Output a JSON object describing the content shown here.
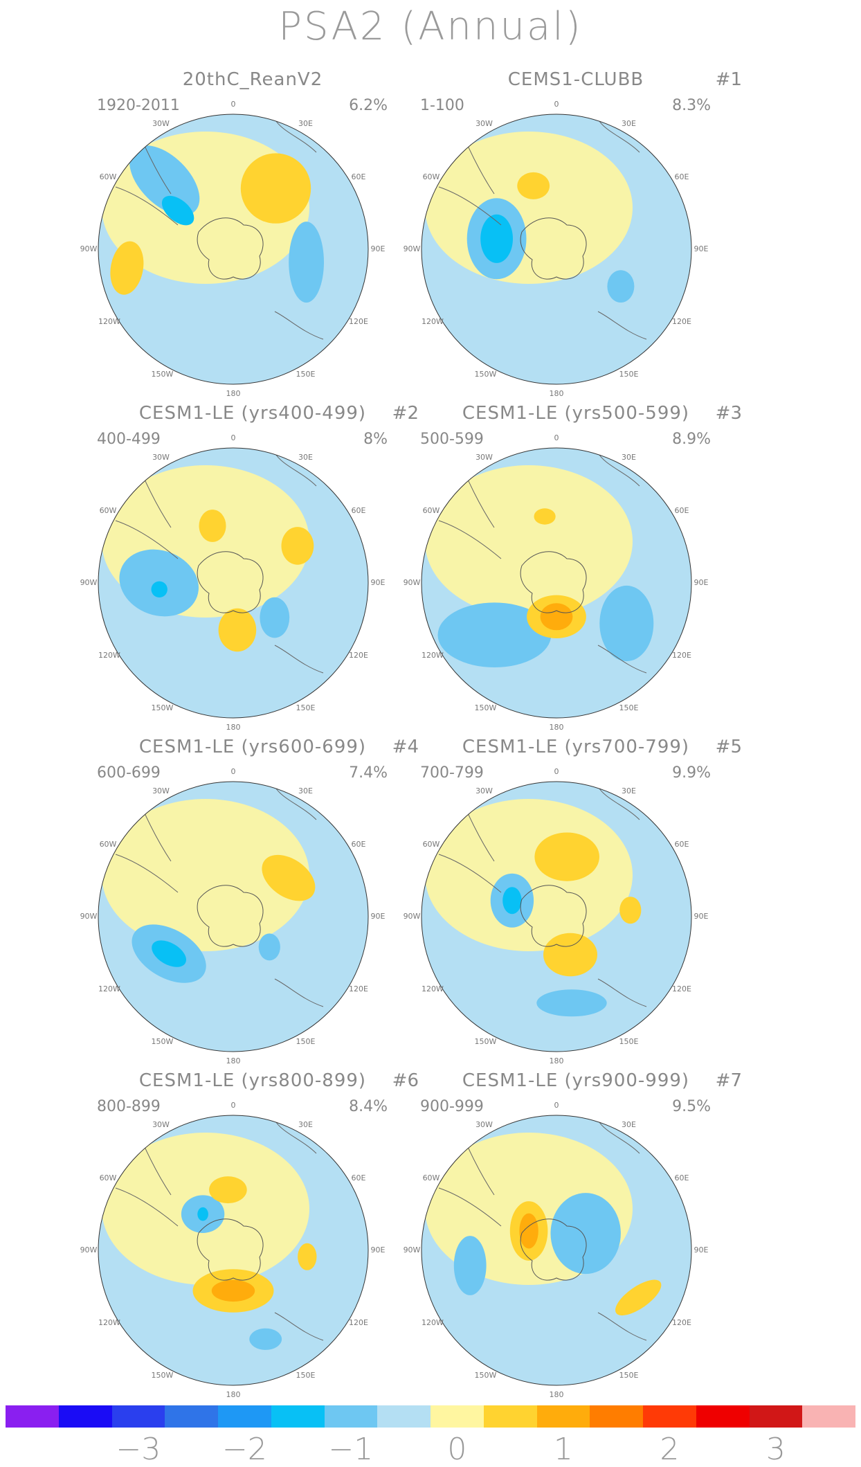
{
  "title": "PSA2 (Annual)",
  "longitude_labels": [
    "0",
    "30E",
    "60E",
    "90E",
    "120E",
    "150E",
    "180",
    "150W",
    "120W",
    "90W",
    "60W",
    "30W"
  ],
  "panels": [
    {
      "title": "20thC_ReanV2",
      "number": "",
      "years": "1920-2011",
      "percent": "6.2%",
      "features": [
        {
          "r": 0.55,
          "ang": 35,
          "w": 0.26,
          "h": 0.26,
          "rot": 0,
          "level": 1
        },
        {
          "r": 0.72,
          "ang": -45,
          "w": 0.32,
          "h": 0.18,
          "rot": 45,
          "level": -1
        },
        {
          "r": 0.5,
          "ang": -55,
          "w": 0.14,
          "h": 0.08,
          "rot": 40,
          "level": -2
        },
        {
          "r": 0.8,
          "ang": -100,
          "w": 0.12,
          "h": 0.2,
          "rot": 10,
          "level": 1
        },
        {
          "r": 0.55,
          "ang": 100,
          "w": 0.13,
          "h": 0.3,
          "rot": 0,
          "level": -1
        }
      ]
    },
    {
      "title": "CEMS1-CLUBB",
      "number": "#1",
      "years": "1-100",
      "percent": "8.3%",
      "features": [
        {
          "r": 0.45,
          "ang": -80,
          "w": 0.22,
          "h": 0.3,
          "rot": 0,
          "level": -1
        },
        {
          "r": 0.45,
          "ang": -80,
          "w": 0.12,
          "h": 0.18,
          "rot": 0,
          "level": -2
        },
        {
          "r": 0.5,
          "ang": -20,
          "w": 0.12,
          "h": 0.1,
          "rot": 0,
          "level": 1
        },
        {
          "r": 0.55,
          "ang": 120,
          "w": 0.1,
          "h": 0.12,
          "rot": 0,
          "level": -1
        }
      ]
    },
    {
      "title": "CESM1-LE (yrs400-499)",
      "number": "#2",
      "years": "400-499",
      "percent": "8%",
      "features": [
        {
          "r": 0.55,
          "ang": -90,
          "w": 0.3,
          "h": 0.24,
          "rot": 20,
          "level": -1
        },
        {
          "r": 0.55,
          "ang": -95,
          "w": 0.06,
          "h": 0.06,
          "rot": 0,
          "level": -2
        },
        {
          "r": 0.35,
          "ang": 175,
          "w": 0.14,
          "h": 0.16,
          "rot": 0,
          "level": 1
        },
        {
          "r": 0.45,
          "ang": -20,
          "w": 0.1,
          "h": 0.12,
          "rot": 0,
          "level": 1
        },
        {
          "r": 0.55,
          "ang": 60,
          "w": 0.12,
          "h": 0.14,
          "rot": 0,
          "level": 1
        },
        {
          "r": 0.4,
          "ang": 130,
          "w": 0.11,
          "h": 0.15,
          "rot": 0,
          "level": -1
        }
      ]
    },
    {
      "title": "CESM1-LE (yrs500-599)",
      "number": "#3",
      "years": "500-599",
      "percent": "8.9%",
      "features": [
        {
          "r": 0.6,
          "ang": -130,
          "w": 0.42,
          "h": 0.24,
          "rot": 0,
          "level": -1
        },
        {
          "r": 0.6,
          "ang": 120,
          "w": 0.2,
          "h": 0.28,
          "rot": 0,
          "level": -1
        },
        {
          "r": 0.25,
          "ang": 180,
          "w": 0.22,
          "h": 0.16,
          "rot": 0,
          "level": 1
        },
        {
          "r": 0.25,
          "ang": 180,
          "w": 0.12,
          "h": 0.1,
          "rot": 0,
          "level": 2
        },
        {
          "r": 0.5,
          "ang": -10,
          "w": 0.08,
          "h": 0.06,
          "rot": 0,
          "level": 1
        }
      ]
    },
    {
      "title": "CESM1-LE (yrs600-699)",
      "number": "#4",
      "years": "600-699",
      "percent": "7.4%",
      "features": [
        {
          "r": 0.55,
          "ang": -120,
          "w": 0.3,
          "h": 0.18,
          "rot": 30,
          "level": -1
        },
        {
          "r": 0.55,
          "ang": -120,
          "w": 0.14,
          "h": 0.08,
          "rot": 30,
          "level": -2
        },
        {
          "r": 0.5,
          "ang": 55,
          "w": 0.22,
          "h": 0.14,
          "rot": 35,
          "level": 1
        },
        {
          "r": 0.35,
          "ang": 130,
          "w": 0.08,
          "h": 0.1,
          "rot": 0,
          "level": -1
        }
      ]
    },
    {
      "title": "CESM1-LE (yrs700-799)",
      "number": "#5",
      "years": "700-799",
      "percent": "9.9%",
      "features": [
        {
          "r": 0.35,
          "ang": -70,
          "w": 0.16,
          "h": 0.2,
          "rot": 0,
          "level": -1
        },
        {
          "r": 0.35,
          "ang": -70,
          "w": 0.07,
          "h": 0.1,
          "rot": 0,
          "level": -2
        },
        {
          "r": 0.45,
          "ang": 10,
          "w": 0.24,
          "h": 0.18,
          "rot": 0,
          "level": 1
        },
        {
          "r": 0.3,
          "ang": 160,
          "w": 0.2,
          "h": 0.16,
          "rot": 0,
          "level": 1
        },
        {
          "r": 0.65,
          "ang": 170,
          "w": 0.26,
          "h": 0.1,
          "rot": 0,
          "level": -1
        },
        {
          "r": 0.55,
          "ang": 85,
          "w": 0.08,
          "h": 0.1,
          "rot": 0,
          "level": 1
        }
      ]
    },
    {
      "title": "CESM1-LE (yrs800-899)",
      "number": "#6",
      "years": "800-899",
      "percent": "8.4%",
      "features": [
        {
          "r": 0.35,
          "ang": -40,
          "w": 0.16,
          "h": 0.14,
          "rot": 0,
          "level": -1
        },
        {
          "r": 0.35,
          "ang": -40,
          "w": 0.04,
          "h": 0.05,
          "rot": 0,
          "level": -2
        },
        {
          "r": 0.45,
          "ang": -5,
          "w": 0.14,
          "h": 0.1,
          "rot": 0,
          "level": 1
        },
        {
          "r": 0.3,
          "ang": 180,
          "w": 0.3,
          "h": 0.16,
          "rot": 0,
          "level": 1
        },
        {
          "r": 0.3,
          "ang": 180,
          "w": 0.16,
          "h": 0.08,
          "rot": 0,
          "level": 2
        },
        {
          "r": 0.55,
          "ang": 95,
          "w": 0.07,
          "h": 0.1,
          "rot": 0,
          "level": 1
        },
        {
          "r": 0.7,
          "ang": 160,
          "w": 0.12,
          "h": 0.08,
          "rot": 0,
          "level": -1
        }
      ]
    },
    {
      "title": "CESM1-LE (yrs900-999)",
      "number": "#7",
      "years": "900-999",
      "percent": "9.5%",
      "features": [
        {
          "r": 0.25,
          "ang": -55,
          "w": 0.14,
          "h": 0.22,
          "rot": 0,
          "level": 1
        },
        {
          "r": 0.25,
          "ang": -55,
          "w": 0.07,
          "h": 0.13,
          "rot": 0,
          "level": 2
        },
        {
          "r": 0.25,
          "ang": 60,
          "w": 0.26,
          "h": 0.3,
          "rot": 0,
          "level": -1
        },
        {
          "r": 0.65,
          "ang": -100,
          "w": 0.12,
          "h": 0.22,
          "rot": 0,
          "level": -1
        },
        {
          "r": 0.7,
          "ang": 120,
          "w": 0.2,
          "h": 0.08,
          "rot": -35,
          "level": 1
        }
      ]
    }
  ],
  "colorbar": {
    "colors": [
      "#8a1ff0",
      "#1a0cf5",
      "#2a3fee",
      "#2f74e8",
      "#1e98f5",
      "#08c0f5",
      "#6ec7f2",
      "#b4dff3",
      "#fff6a0",
      "#ffd330",
      "#ffac0c",
      "#ff7d00",
      "#ff3a06",
      "#ef0000",
      "#d11717",
      "#f9b3b3"
    ],
    "labels": [
      "−3",
      "−2",
      "−1",
      "0",
      "1",
      "2",
      "3"
    ],
    "ticks": [
      -3,
      -2,
      -1,
      0,
      1,
      2,
      3
    ]
  }
}
